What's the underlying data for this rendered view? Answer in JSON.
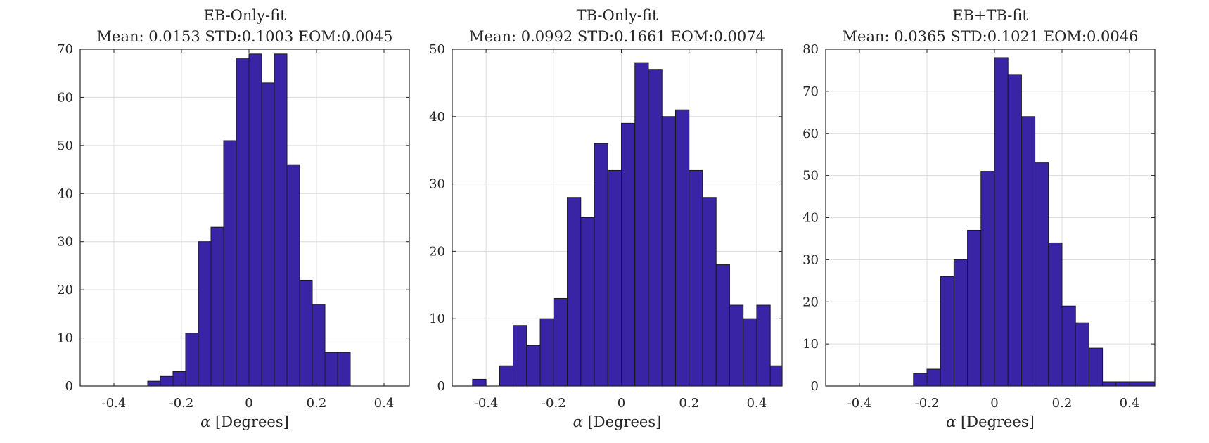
{
  "chart_data": [
    {
      "type": "bar",
      "title": "EB-Only-fit",
      "subtitle": "Mean: 0.0153 STD:0.1003 EOM:0.0045",
      "xlabel_symbol": "α",
      "xlabel": "[Degrees]",
      "ylabel": "",
      "xlim": [
        -0.5,
        0.475
      ],
      "ylim": [
        0,
        70
      ],
      "xticks": [
        -0.4,
        -0.2,
        0,
        0.2,
        0.4
      ],
      "xtick_labels": [
        "-0.4",
        "-0.2",
        "0",
        "0.2",
        "0.4"
      ],
      "yticks": [
        0,
        10,
        20,
        30,
        40,
        50,
        60,
        70
      ],
      "ytick_labels": [
        "0",
        "10",
        "20",
        "30",
        "40",
        "50",
        "60",
        "70"
      ],
      "grid": true,
      "bar_color": "#3a24a6",
      "bin_edges": [
        -0.5,
        -0.3,
        -0.2625,
        -0.225,
        -0.1875,
        -0.15,
        -0.1125,
        -0.075,
        -0.0375,
        0,
        0.0375,
        0.075,
        0.1125,
        0.15,
        0.1875,
        0.225,
        0.2625,
        0.3,
        0.475
      ],
      "values": [
        0,
        1,
        2,
        3,
        11,
        30,
        33,
        51,
        68,
        69,
        63,
        69,
        46,
        22,
        17,
        7,
        7,
        0
      ]
    },
    {
      "type": "bar",
      "title": "TB-Only-fit",
      "subtitle": "Mean: 0.0992 STD:0.1661 EOM:0.0074",
      "xlabel_symbol": "α",
      "xlabel": "[Degrees]",
      "ylabel": "",
      "xlim": [
        -0.5,
        0.475
      ],
      "ylim": [
        0,
        50
      ],
      "xticks": [
        -0.4,
        -0.2,
        0,
        0.2,
        0.4
      ],
      "xtick_labels": [
        "-0.4",
        "-0.2",
        "0",
        "0.2",
        "0.4"
      ],
      "yticks": [
        0,
        10,
        20,
        30,
        40,
        50
      ],
      "ytick_labels": [
        "0",
        "10",
        "20",
        "30",
        "40",
        "50"
      ],
      "grid": true,
      "bar_color": "#3a24a6",
      "bin_edges": [
        -0.5,
        -0.44,
        -0.4,
        -0.36,
        -0.32,
        -0.28,
        -0.24,
        -0.2,
        -0.16,
        -0.12,
        -0.08,
        -0.04,
        0,
        0.04,
        0.08,
        0.12,
        0.16,
        0.2,
        0.24,
        0.28,
        0.32,
        0.36,
        0.4,
        0.44,
        0.475
      ],
      "values": [
        0,
        1,
        0,
        3,
        9,
        6,
        10,
        13,
        28,
        25,
        36,
        32,
        39,
        48,
        47,
        40,
        41,
        32,
        28,
        18,
        12,
        10,
        12,
        3
      ]
    },
    {
      "type": "bar",
      "title": "EB+TB-fit",
      "subtitle": "Mean: 0.0365 STD:0.1021 EOM:0.0046",
      "xlabel_symbol": "α",
      "xlabel": "[Degrees]",
      "ylabel": "",
      "xlim": [
        -0.5,
        0.475
      ],
      "ylim": [
        0,
        80
      ],
      "xticks": [
        -0.4,
        -0.2,
        0,
        0.2,
        0.4
      ],
      "xtick_labels": [
        "-0.4",
        "-0.2",
        "0",
        "0.2",
        "0.4"
      ],
      "yticks": [
        0,
        10,
        20,
        30,
        40,
        50,
        60,
        70,
        80
      ],
      "ytick_labels": [
        "0",
        "10",
        "20",
        "30",
        "40",
        "50",
        "60",
        "70",
        "80"
      ],
      "grid": true,
      "bar_color": "#3a24a6",
      "bin_edges": [
        -0.5,
        -0.24,
        -0.2,
        -0.16,
        -0.12,
        -0.08,
        -0.04,
        0,
        0.04,
        0.08,
        0.12,
        0.16,
        0.2,
        0.24,
        0.28,
        0.32,
        0.36,
        0.475
      ],
      "values": [
        0,
        3,
        4,
        26,
        30,
        37,
        51,
        78,
        74,
        64,
        53,
        34,
        19,
        15,
        9,
        1,
        1
      ]
    }
  ]
}
